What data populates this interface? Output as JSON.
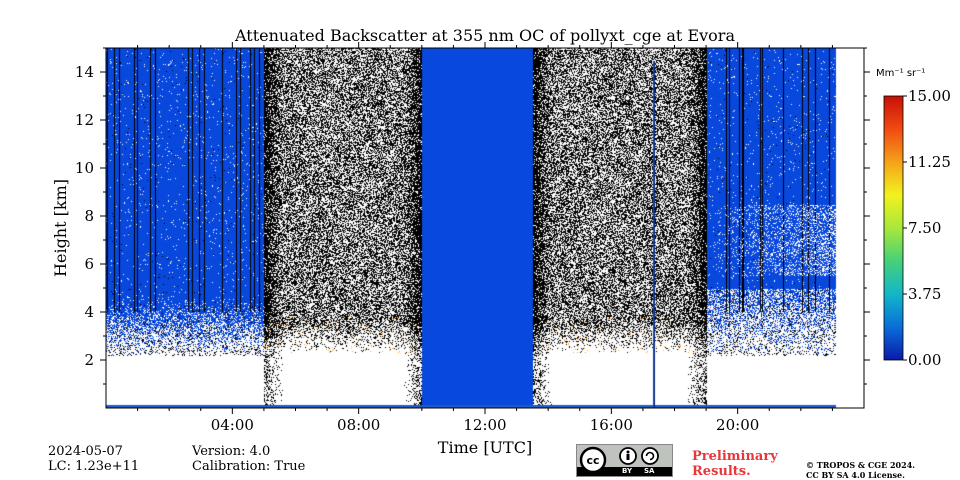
{
  "chart_data": {
    "type": "heatmap",
    "title": "Attenuated Backscatter at 355 nm OC of pollyxt_cge at Evora",
    "xlabel": "Time [UTC]",
    "ylabel": "Height [km]",
    "xlim_hours": [
      0,
      24
    ],
    "ylim_km": [
      0,
      15
    ],
    "x_ticks": [
      {
        "hour": 4,
        "label": "04:00"
      },
      {
        "hour": 8,
        "label": "08:00"
      },
      {
        "hour": 12,
        "label": "12:00"
      },
      {
        "hour": 16,
        "label": "16:00"
      },
      {
        "hour": 20,
        "label": "20:00"
      }
    ],
    "y_ticks": [
      {
        "km": 2,
        "label": "2"
      },
      {
        "km": 4,
        "label": "4"
      },
      {
        "km": 6,
        "label": "6"
      },
      {
        "km": 8,
        "label": "8"
      },
      {
        "km": 10,
        "label": "10"
      },
      {
        "km": 12,
        "label": "12"
      },
      {
        "km": 14,
        "label": "14"
      }
    ],
    "colorbar": {
      "unit": "Mm⁻¹ sr⁻¹",
      "min": 0.0,
      "max": 15.0,
      "ticks": [
        "0.00",
        "3.75",
        "7.50",
        "11.25",
        "15.00"
      ],
      "colors": [
        "#0a1aa8",
        "#0a6ed8",
        "#12b7c8",
        "#46d07a",
        "#a8e83a",
        "#f2f21e",
        "#f5a21a",
        "#f04a12",
        "#c81008"
      ]
    },
    "segments": [
      {
        "name": "noisy-blue",
        "start_h": 0.0,
        "end_h": 5.0
      },
      {
        "name": "noisy-black",
        "start_h": 5.0,
        "end_h": 10.0
      },
      {
        "name": "no-data-gap",
        "start_h": 10.0,
        "end_h": 13.5
      },
      {
        "name": "noisy-black",
        "start_h": 13.5,
        "end_h": 19.0
      },
      {
        "name": "noisy-blue-clouds",
        "start_h": 19.0,
        "end_h": 23.1
      }
    ]
  },
  "footer": {
    "date": "2024-05-07",
    "lc": "LC: 1.23e+11",
    "version": "Version: 4.0",
    "calibration": "Calibration: True",
    "preliminary_line1": "Preliminary",
    "preliminary_line2": "Results.",
    "copyright_line1": "© TROPOS & CGE 2024.",
    "copyright_line2": "CC BY SA 4.0 License.",
    "license_badge": {
      "by": "BY",
      "sa": "SA"
    }
  }
}
